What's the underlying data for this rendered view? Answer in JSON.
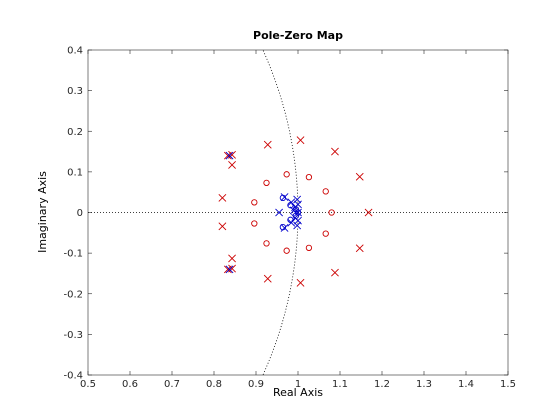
{
  "chart_data": {
    "type": "scatter",
    "title": "Pole-Zero Map",
    "xlabel": "Real Axis",
    "ylabel": "Imaginary Axis",
    "xlim": [
      0.5,
      1.5
    ],
    "ylim": [
      -0.4,
      0.4
    ],
    "xticks": [
      0.5,
      0.6,
      0.7,
      0.8,
      0.9,
      1,
      1.1,
      1.2,
      1.3,
      1.4,
      1.5
    ],
    "xtick_labels": [
      "0.5",
      "0.6",
      "0.7",
      "0.8",
      "0.9",
      "1",
      "1.1",
      "1.2",
      "1.3",
      "1.4",
      "1.5"
    ],
    "yticks": [
      -0.4,
      -0.3,
      -0.2,
      -0.1,
      0,
      0.1,
      0.2,
      0.3,
      0.4
    ],
    "ytick_labels": [
      "-0.4",
      "-0.3",
      "-0.2",
      "-0.1",
      "0",
      "0.1",
      "0.2",
      "0.3",
      "0.4"
    ],
    "grid": false,
    "unit_circle": true,
    "colors": {
      "red": "#cc0000",
      "blue": "#0000cc",
      "axis": "#262626"
    },
    "series": [
      {
        "color": "red",
        "marker": "x",
        "points": [
          [
            1.168,
            0.0
          ],
          [
            1.147,
            0.088
          ],
          [
            1.147,
            -0.088
          ],
          [
            1.088,
            0.15
          ],
          [
            1.088,
            -0.148
          ],
          [
            1.006,
            0.178
          ],
          [
            1.006,
            -0.173
          ],
          [
            0.928,
            0.167
          ],
          [
            0.928,
            -0.163
          ],
          [
            0.843,
            0.142
          ],
          [
            0.843,
            -0.138
          ],
          [
            0.833,
            0.14
          ],
          [
            0.833,
            -0.14
          ],
          [
            0.843,
            0.117
          ],
          [
            0.843,
            -0.113
          ],
          [
            0.82,
            0.036
          ],
          [
            0.82,
            -0.034
          ]
        ]
      },
      {
        "color": "red",
        "marker": "o",
        "points": [
          [
            1.08,
            0.0
          ],
          [
            1.066,
            0.052
          ],
          [
            1.066,
            -0.052
          ],
          [
            1.026,
            0.087
          ],
          [
            1.026,
            -0.087
          ],
          [
            0.973,
            0.094
          ],
          [
            0.973,
            -0.094
          ],
          [
            0.925,
            0.073
          ],
          [
            0.925,
            -0.076
          ],
          [
            0.896,
            0.025
          ],
          [
            0.896,
            -0.027
          ]
        ]
      },
      {
        "color": "blue",
        "marker": "x",
        "points": [
          [
            0.837,
            0.14
          ],
          [
            0.837,
            -0.14
          ],
          [
            0.955,
            0.0
          ],
          [
            0.968,
            0.038
          ],
          [
            0.968,
            -0.038
          ],
          [
            0.984,
            0.025
          ],
          [
            0.984,
            -0.025
          ],
          [
            0.993,
            0.013
          ],
          [
            0.993,
            -0.013
          ],
          [
            0.998,
            0.032
          ],
          [
            0.998,
            -0.032
          ],
          [
            1.0,
            0.0
          ],
          [
            1.0,
            0.02
          ],
          [
            1.0,
            -0.02
          ],
          [
            0.99,
            0.005
          ]
        ]
      },
      {
        "color": "blue",
        "marker": "o",
        "points": [
          [
            0.964,
            0.036
          ],
          [
            0.964,
            -0.036
          ],
          [
            0.982,
            0.018
          ],
          [
            0.982,
            -0.018
          ],
          [
            0.995,
            0.008
          ],
          [
            0.995,
            -0.008
          ],
          [
            1.0,
            0.0
          ]
        ]
      }
    ]
  }
}
